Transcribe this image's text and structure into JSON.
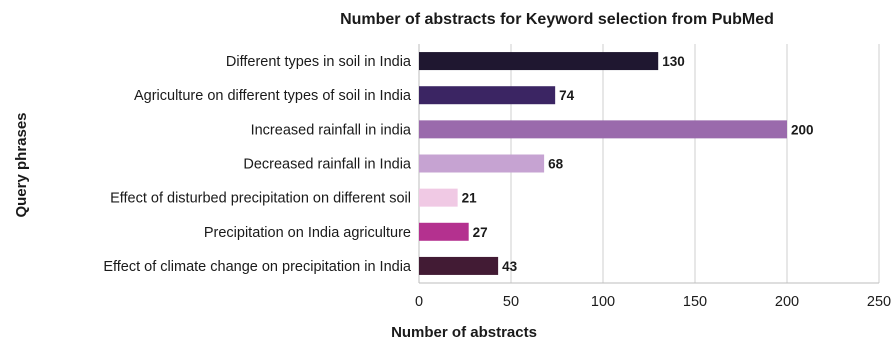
{
  "chart_data": {
    "type": "bar",
    "orientation": "horizontal",
    "title": "Number of abstracts for Keyword selection from PubMed",
    "xlabel": "Number of abstracts",
    "ylabel": "Query  phrases",
    "xlim": [
      0,
      250
    ],
    "xticks": [
      0,
      50,
      100,
      150,
      200,
      250
    ],
    "grid": true,
    "categories": [
      "Different types in soil in India",
      "Agriculture on different types of soil in India",
      "Increased rainfall in india",
      "Decreased rainfall in India",
      "Effect of disturbed precipitation on different soil",
      "Precipitation on India agriculture",
      "Effect of climate change on precipitation in India"
    ],
    "values": [
      130,
      74,
      200,
      68,
      21,
      27,
      43
    ],
    "colors": [
      "#1f1730",
      "#3b2563",
      "#9a6aac",
      "#c6a3d2",
      "#f0c9e4",
      "#b4318f",
      "#421b34"
    ]
  }
}
